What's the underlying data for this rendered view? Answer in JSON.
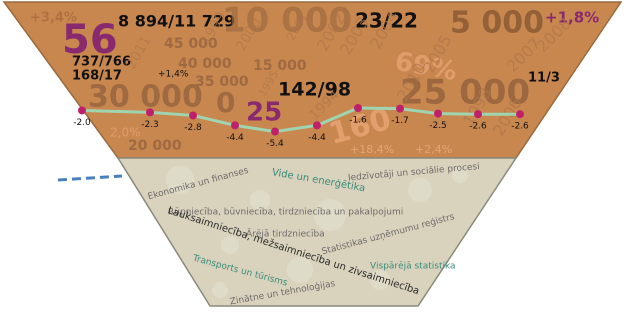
{
  "top_texts": [
    "+3,4%",
    "56",
    "8 894/11 729",
    "10 000",
    "23/22",
    "5 000",
    "+1,8%",
    "45 000",
    "737/766",
    "168/17",
    "40 000",
    "+1,4%",
    "15 000",
    "35 000",
    "142/98",
    "30 000",
    "0",
    "25",
    "25 000",
    "11/3",
    "2,0%",
    "20 000",
    "160",
    "69%",
    "+18,4%",
    "+2,4%",
    "2011",
    "2000",
    "1999",
    "1995",
    "1994",
    "2001",
    "2002",
    "2003",
    "2004",
    "2005",
    "2007",
    "2008",
    "2010",
    "1998",
    "2006"
  ],
  "trend": {
    "values": [
      -2,
      -2.3,
      -2.8,
      -4.4,
      -5.4,
      -4.4,
      -1.6,
      -1.7,
      -2.5,
      -2.6,
      -2.6
    ],
    "value_labels": [
      "-2.0",
      "-2.3",
      "-2.8",
      "-4.4",
      "-5.4",
      "-4.4",
      "-1.6",
      "-1.7",
      "-2.5",
      "-2.6",
      "-2.6"
    ]
  },
  "topics": [
    "Ekonomika un finanses",
    "Vide un enerģētika",
    "Iedzīvotāji un sociālie procesi",
    "Rūpniecība, būvniecība, tirdzniecība un pakalpojumi",
    "Ārējā tirdzniecība",
    "Lauksaimniecība, mežsaimniecība un zivsaimniecība",
    "Statistikas uzņēmumu reģistrs",
    "Vispārējā statistika",
    "Transports un tūrisms",
    "Zinātne un tehnoloģijas"
  ]
}
